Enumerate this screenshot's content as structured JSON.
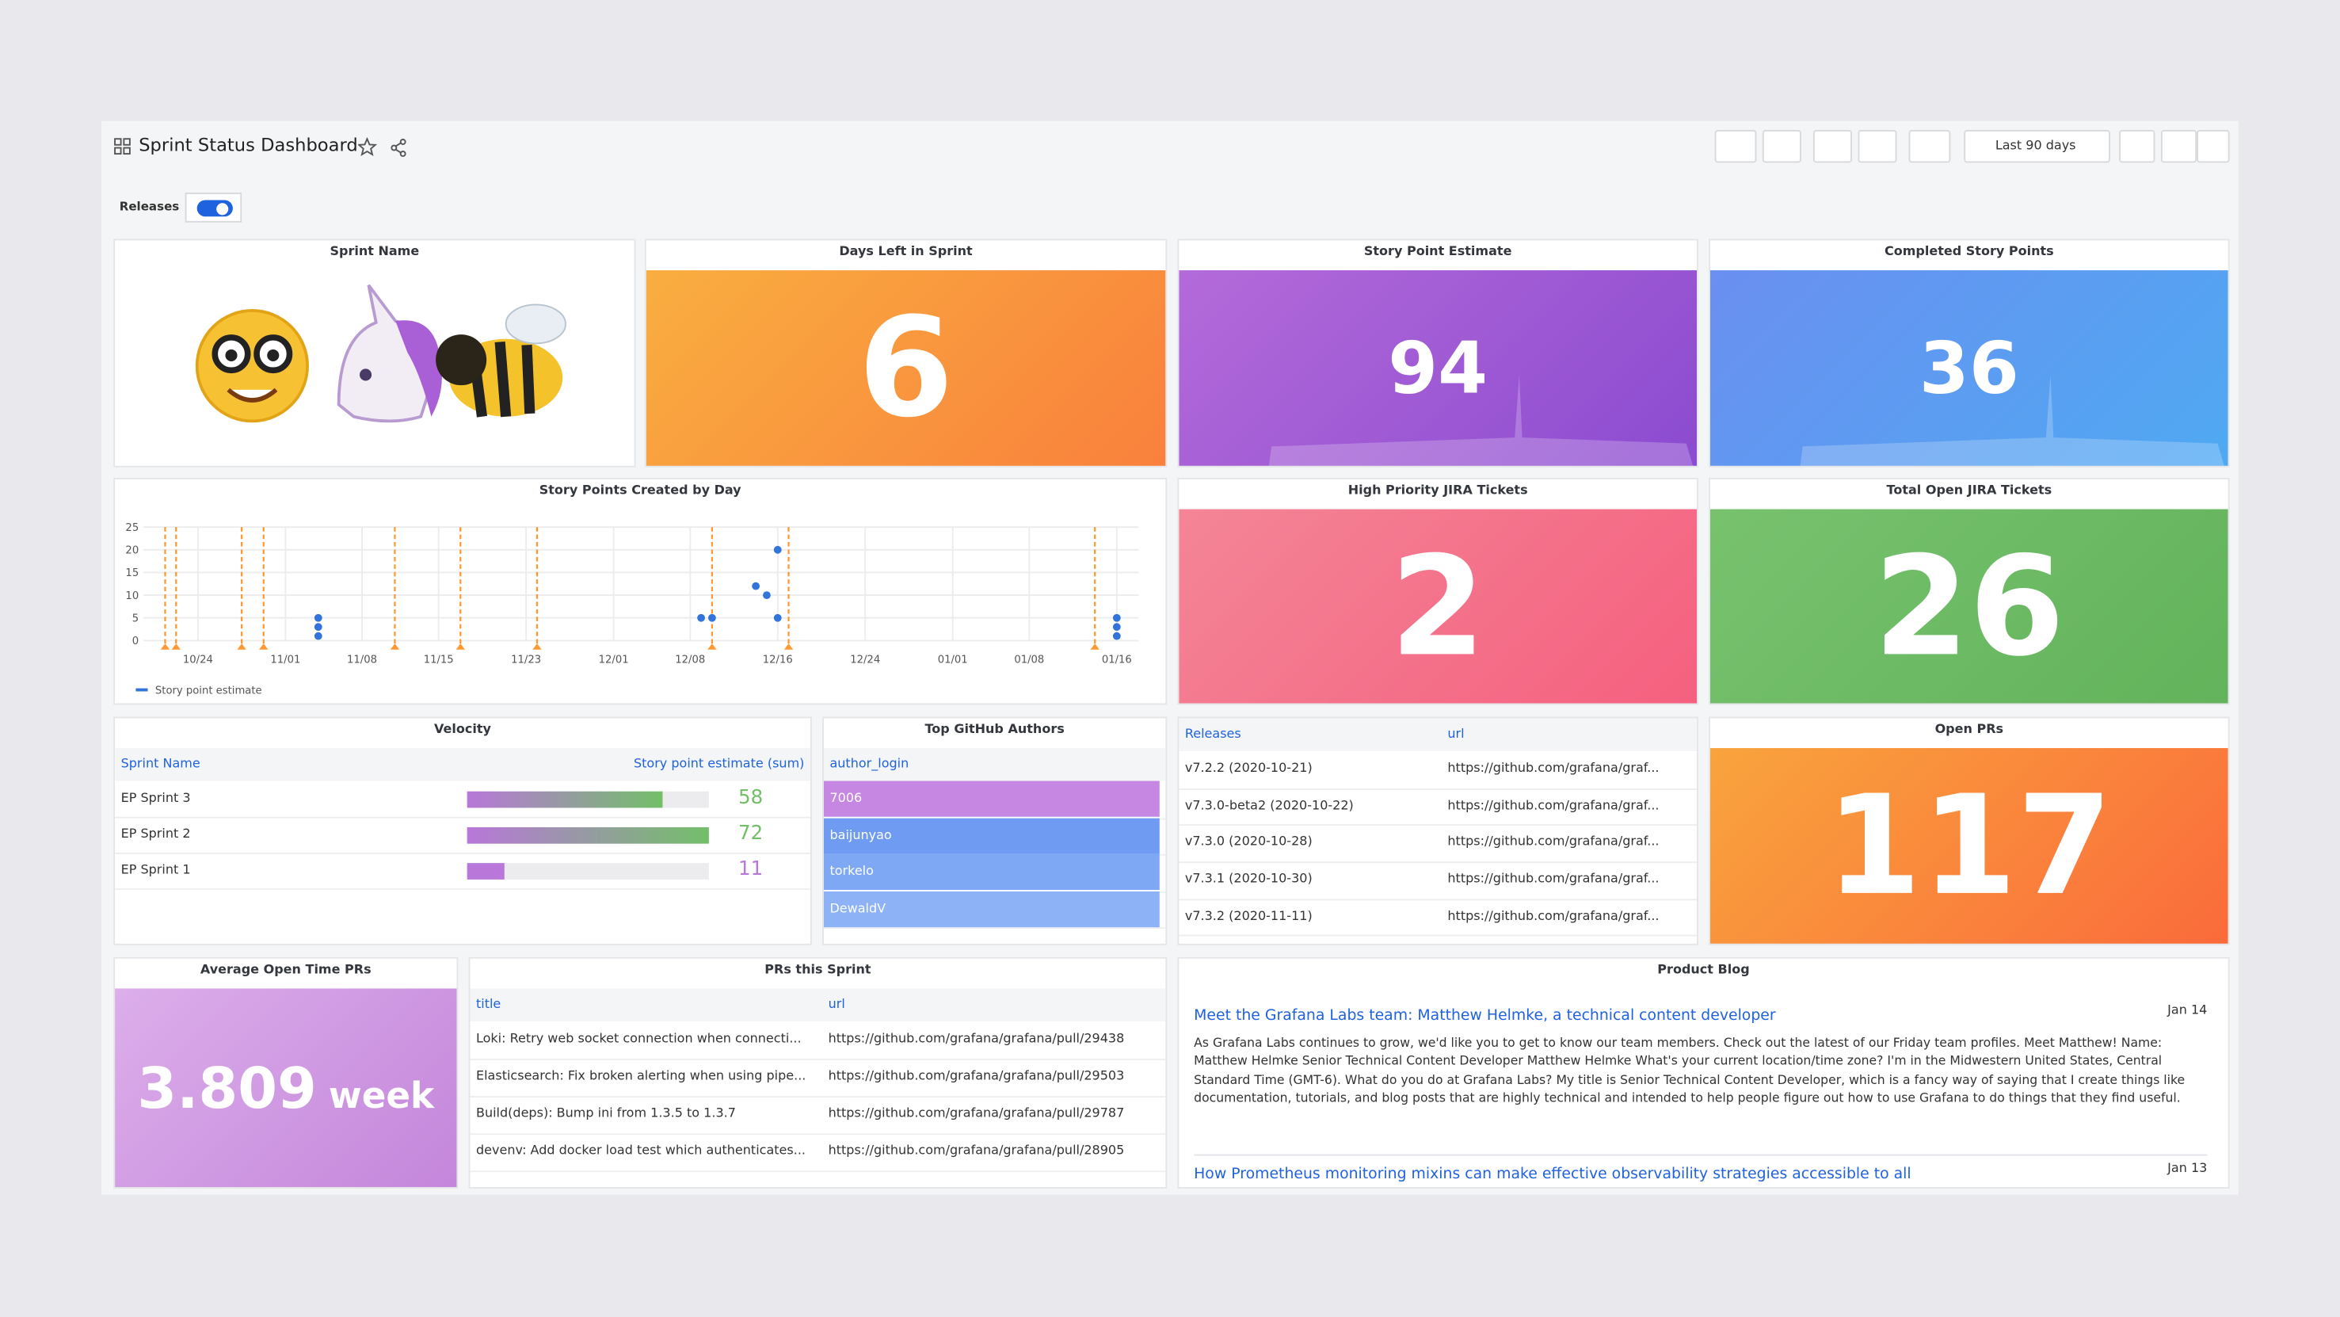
{
  "header": {
    "title": "Sprint Status Dashboard",
    "time_range": "Last 90 days",
    "toggle_label": "Releases"
  },
  "panels": {
    "sprint_name": {
      "title": "Sprint Name"
    },
    "days_left": {
      "title": "Days Left in Sprint",
      "value": 6,
      "colors": [
        "#f9ae40",
        "#f9803c"
      ]
    },
    "story_point_estimate": {
      "title": "Story Point Estimate",
      "value": 94,
      "colors": [
        "#b46ad9",
        "#8b4bd0"
      ]
    },
    "completed_story_points": {
      "title": "Completed Story Points",
      "value": 36,
      "colors": [
        "#6a8ff0",
        "#4fa9f2"
      ]
    },
    "high_priority": {
      "title": "High Priority JIRA Tickets",
      "value": 2,
      "colors": [
        "#f48597",
        "#f5607f"
      ]
    },
    "total_open": {
      "title": "Total Open JIRA Tickets",
      "value": 26,
      "colors": [
        "#78c26e",
        "#62b35b"
      ]
    },
    "open_prs": {
      "title": "Open PRs",
      "value": 117,
      "colors": [
        "#f9a43d",
        "#fa6b3b"
      ]
    },
    "avg_open_time": {
      "title": "Average Open Time PRs",
      "value": 3.809,
      "unit": "week",
      "colors": [
        "#dcaeea",
        "#c486db"
      ]
    },
    "velocity": {
      "title": "Velocity",
      "columns": [
        "Sprint Name",
        "Story point estimate (sum)"
      ],
      "rows": [
        [
          "EP Sprint 3",
          58
        ],
        [
          "EP Sprint 2",
          72
        ],
        [
          "EP Sprint 1",
          11
        ]
      ],
      "bar_colors": [
        "#73bf69",
        "#73bf69",
        "#b877d9"
      ]
    },
    "github_authors": {
      "title": "Top GitHub Authors",
      "columns": [
        "author_login"
      ],
      "rows": [
        [
          "7006"
        ],
        [
          "baijunyao"
        ],
        [
          "torkelo"
        ],
        [
          "DewaldV"
        ]
      ],
      "row_colors": [
        "#c587e2",
        "#6f9cf2",
        "#7ea8f3",
        "#8db2f5"
      ]
    },
    "releases": {
      "columns": [
        "Releases",
        "url"
      ],
      "rows": [
        [
          "v7.2.2 (2020-10-21)",
          "https://github.com/grafana/graf..."
        ],
        [
          "v7.3.0-beta2 (2020-10-22)",
          "https://github.com/grafana/graf..."
        ],
        [
          "v7.3.0 (2020-10-28)",
          "https://github.com/grafana/graf..."
        ],
        [
          "v7.3.1 (2020-10-30)",
          "https://github.com/grafana/graf..."
        ],
        [
          "v7.3.2 (2020-11-11)",
          "https://github.com/grafana/graf..."
        ]
      ]
    },
    "prs_this_sprint": {
      "title": "PRs this Sprint",
      "columns": [
        "title",
        "url"
      ],
      "rows": [
        [
          "Loki: Retry web socket connection when connecti...",
          "https://github.com/grafana/grafana/pull/29438"
        ],
        [
          "Elasticsearch: Fix broken alerting when using pipe...",
          "https://github.com/grafana/grafana/pull/29503"
        ],
        [
          "Build(deps): Bump ini from 1.3.5 to 1.3.7",
          "https://github.com/grafana/grafana/pull/29787"
        ],
        [
          "devenv: Add docker load test which authenticates...",
          "https://github.com/grafana/grafana/pull/28905"
        ]
      ]
    },
    "product_blog": {
      "title": "Product Blog",
      "items": [
        {
          "title": "Meet the Grafana Labs team: Matthew Helmke, a technical content developer",
          "date": "Jan 14",
          "text": "As Grafana Labs continues to grow, we'd like you to get to know our team members. Check out the latest of our Friday team profiles. Meet Matthew! Name: Matthew Helmke Senior Technical Content Developer Matthew Helmke What's your current location/time zone? I'm in the Midwestern United States, Central Standard Time (GMT-6). What do you do at Grafana Labs? My title is Senior Technical Content Developer, which is a fancy way of saying that I create things like documentation, tutorials, and blog posts that are highly technical and intended to help people figure out how to use Grafana to do things that they find useful."
        },
        {
          "title": "How Prometheus monitoring mixins can make effective observability strategies accessible to all",
          "date": "Jan 13"
        }
      ]
    }
  },
  "chart_data": {
    "type": "scatter",
    "title": "Story Points Created by Day",
    "x": [
      "11/04",
      "11/04",
      "11/04",
      "12/09",
      "12/10",
      "12/14",
      "12/15",
      "12/16",
      "12/16",
      "01/16",
      "01/16",
      "01/16"
    ],
    "series": [
      {
        "name": "Story point estimate",
        "color": "#3274d9",
        "values": [
          1,
          3,
          5,
          5,
          5,
          12,
          10,
          20,
          5,
          1,
          3,
          5
        ]
      }
    ],
    "xlim": [
      "10/19",
      "01/18"
    ],
    "xticks": [
      "10/24",
      "11/01",
      "11/08",
      "11/15",
      "11/23",
      "12/01",
      "12/08",
      "12/16",
      "12/24",
      "01/01",
      "01/08",
      "01/16"
    ],
    "ylim": [
      0,
      25
    ],
    "yticks": [
      0,
      5,
      10,
      15,
      20,
      25
    ],
    "grid": true,
    "annotations": {
      "color": "#ff9830",
      "x": [
        "10/21",
        "10/22",
        "10/28",
        "10/30",
        "11/11",
        "11/17",
        "11/24",
        "12/10",
        "12/17",
        "01/14"
      ]
    }
  }
}
